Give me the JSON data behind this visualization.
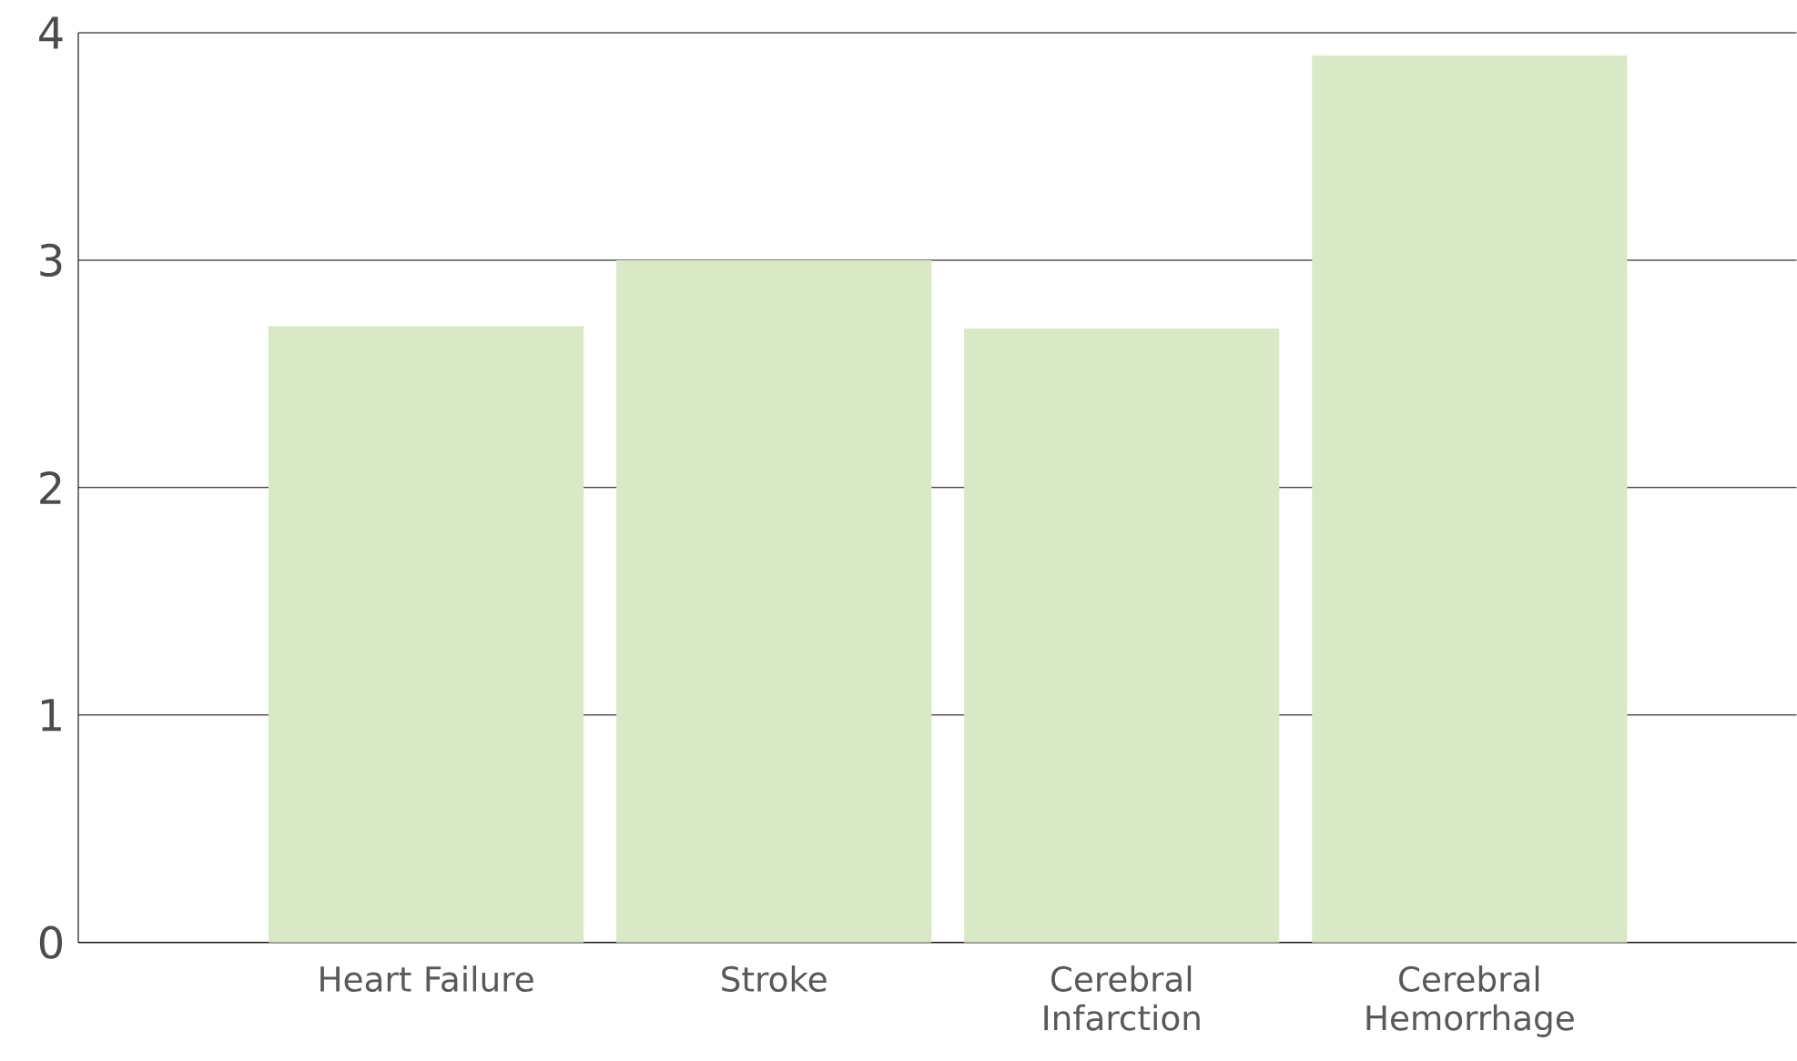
{
  "chart_data": {
    "type": "bar",
    "categories": [
      "Heart Failure",
      "Stroke",
      "Cerebral Infarction",
      "Cerebral Hemorrhage"
    ],
    "values": [
      2.71,
      3.0,
      2.7,
      3.9
    ],
    "color": "#d9e8c5",
    "ylim": [
      0,
      4
    ],
    "yticks": [
      0,
      1,
      2,
      3,
      4
    ],
    "grid": "y"
  }
}
